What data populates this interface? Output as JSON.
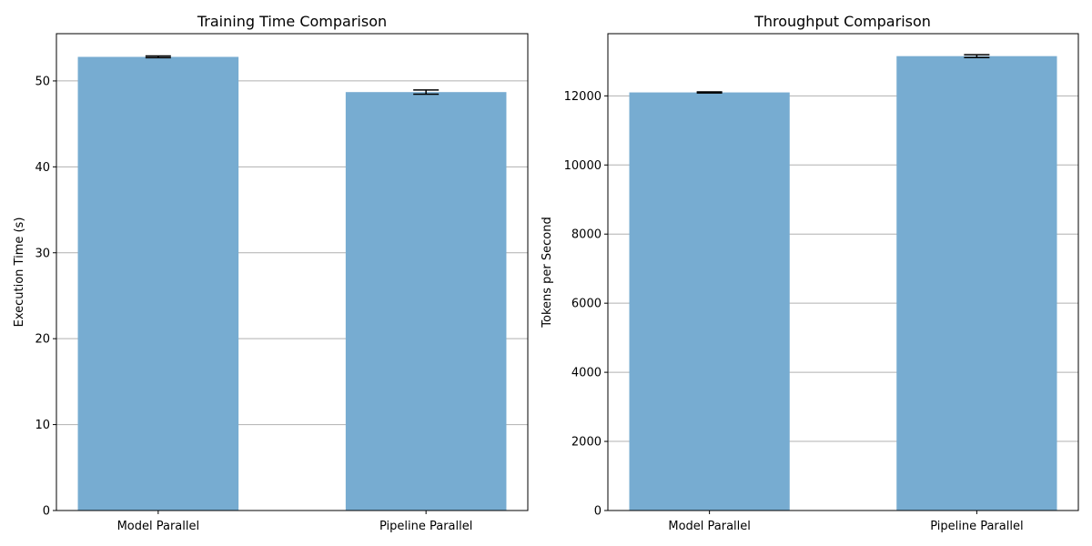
{
  "bar_color": "#77acd1",
  "grid_color": "#b0b0b0",
  "errorbar_color": "#000000",
  "chart_data": [
    {
      "type": "bar",
      "title": "Training Time Comparison",
      "xlabel": "",
      "ylabel": "Execution Time (s)",
      "categories": [
        "Model Parallel",
        "Pipeline Parallel"
      ],
      "values": [
        52.8,
        48.7
      ],
      "errors": [
        0.1,
        0.25
      ],
      "ylim": [
        0,
        55.5
      ],
      "yticks": [
        0,
        10,
        20,
        30,
        40,
        50
      ],
      "grid": "y"
    },
    {
      "type": "bar",
      "title": "Throughput Comparison",
      "xlabel": "",
      "ylabel": "Tokens per Second",
      "categories": [
        "Model Parallel",
        "Pipeline Parallel"
      ],
      "values": [
        12100,
        13150
      ],
      "errors": [
        15,
        40
      ],
      "ylim": [
        0,
        13800
      ],
      "yticks": [
        0,
        2000,
        4000,
        6000,
        8000,
        10000,
        12000
      ],
      "grid": "y"
    }
  ]
}
